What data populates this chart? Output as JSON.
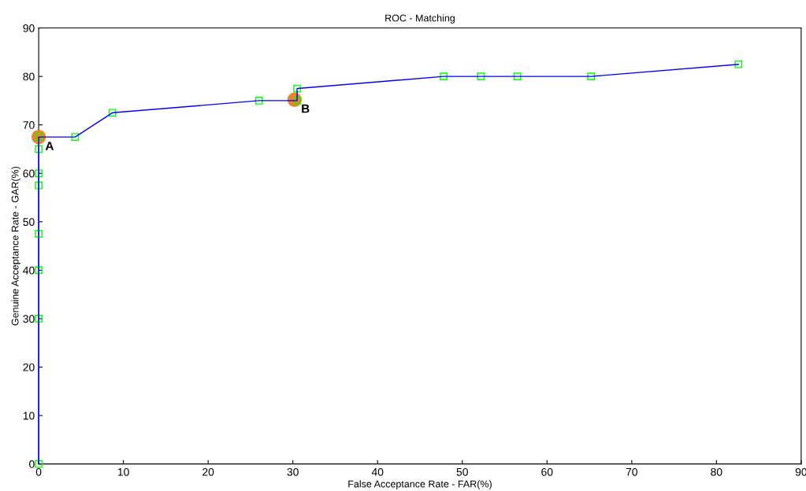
{
  "chart_data": {
    "type": "line",
    "title": "ROC - Matching",
    "xlabel": "False Acceptance Rate - FAR(%)",
    "ylabel": "Genuine Acceptance Rate - GAR(%)",
    "series": [
      {
        "color": "#0000ff",
        "marker": "square",
        "colors": [
          "#00ff00",
          "#00ff00",
          "#00ff00",
          "#00ff00",
          "#00ff00",
          "#00ff00",
          "#00ff00",
          "#00ff00",
          "#00ff00",
          "#00ff00",
          "#00ff00",
          "#00ff00",
          "#00ff00",
          "#00ff00",
          "#00ff00",
          "#00ff00",
          "#00ff00",
          "#00ff00"
        ],
        "x": [
          0,
          0,
          0,
          0,
          0,
          0,
          0,
          0,
          4.3,
          8.7,
          26,
          30.5,
          30.5,
          47.8,
          52.2,
          56.5,
          65.2,
          82.6
        ],
        "values": [
          0,
          30,
          40,
          47.5,
          57.5,
          60,
          65,
          67.5,
          67.5,
          72.5,
          75,
          75,
          77.5,
          80,
          80,
          80,
          80,
          82.5
        ]
      },
      {
        "type": "scatter",
        "color": "#f58025",
        "marker": "circle",
        "x": [
          0,
          30.2
        ],
        "values": [
          67.5,
          75.2
        ]
      }
    ],
    "annotations": [
      {
        "text": "A",
        "x": 0,
        "y": 67.5
      },
      {
        "text": "B",
        "x": 30.2,
        "y": 75.2
      }
    ],
    "xlim": [
      0,
      90
    ],
    "xticks": [
      0,
      10,
      20,
      30,
      40,
      50,
      60,
      70,
      80,
      90
    ],
    "ylim": [
      0,
      90
    ],
    "yticks": [
      0,
      10,
      20,
      30,
      40,
      50,
      60,
      70,
      80,
      90
    ],
    "grid": false
  }
}
